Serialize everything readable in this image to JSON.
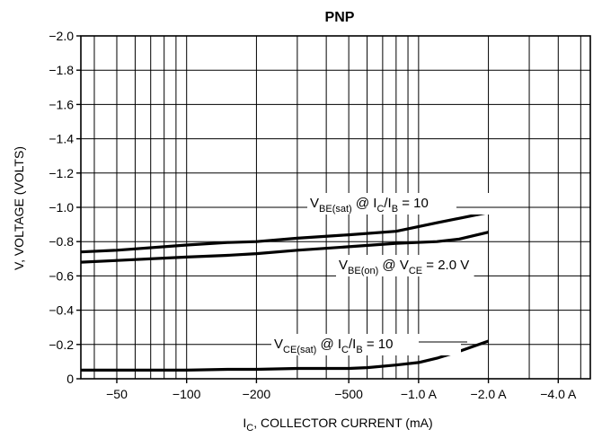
{
  "chart_data": {
    "type": "line",
    "title": "PNP",
    "xlabel": {
      "main": "I",
      "sub": "C",
      "rest": ", COLLECTOR CURRENT (mA)"
    },
    "ylabel": "V, VOLTAGE (VOLTS)",
    "x_scale": "log",
    "x_unit": "mA",
    "xlim": [
      -35,
      -5500
    ],
    "ylim": [
      0,
      -2.0
    ],
    "y_ticks": [
      0,
      -0.2,
      -0.4,
      -0.6,
      -0.8,
      -1.0,
      -1.2,
      -1.4,
      -1.6,
      -1.8,
      -2.0
    ],
    "y_tick_labels": [
      "0",
      "−0.2",
      "−0.4",
      "−0.6",
      "−0.8",
      "−1.0",
      "−1.2",
      "−1.4",
      "−1.6",
      "−1.8",
      "−2.0"
    ],
    "x_ticks": [
      -50,
      -100,
      -200,
      -500,
      -1000,
      -2000,
      -4000
    ],
    "x_tick_labels": [
      "−50",
      "−100",
      "−200",
      "−500",
      "−1.0 A",
      "−2.0 A",
      "−4.0 A"
    ],
    "x_grid_values": [
      -40,
      -50,
      -60,
      -70,
      -80,
      -90,
      -100,
      -200,
      -300,
      -400,
      -500,
      -600,
      -700,
      -800,
      -900,
      -1000,
      -2000,
      -3000,
      -4000,
      -5000
    ],
    "grid": true,
    "series": [
      {
        "name": "VBE(sat) @ IC/IB = 10",
        "x": [
          -35,
          -50,
          -100,
          -150,
          -200,
          -300,
          -500,
          -800,
          -1200,
          -2000
        ],
        "y": [
          -0.74,
          -0.75,
          -0.78,
          -0.795,
          -0.8,
          -0.82,
          -0.84,
          -0.86,
          -0.91,
          -0.97
        ],
        "label": {
          "parts": [
            [
              "V",
              "main"
            ],
            [
              "BE(sat)",
              "sub"
            ],
            [
              " @ I",
              "main"
            ],
            [
              "C",
              "sub"
            ],
            [
              "/I",
              "main"
            ],
            [
              "B",
              "sub"
            ],
            [
              " = 10",
              "main"
            ]
          ]
        }
      },
      {
        "name": "VBE(on) @ VCE = 2.0 V",
        "x": [
          -35,
          -50,
          -100,
          -150,
          -200,
          -300,
          -500,
          -800,
          -1200,
          -1500,
          -2000
        ],
        "y": [
          -0.68,
          -0.69,
          -0.71,
          -0.72,
          -0.73,
          -0.75,
          -0.77,
          -0.79,
          -0.8,
          -0.815,
          -0.855
        ],
        "label": {
          "parts": [
            [
              "V",
              "main"
            ],
            [
              "BE(on)",
              "sub"
            ],
            [
              " @ V",
              "main"
            ],
            [
              "CE",
              "sub"
            ],
            [
              " = 2.0 V",
              "main"
            ]
          ]
        }
      },
      {
        "name": "VCE(sat) @ IC/IB = 10",
        "x": [
          -35,
          -50,
          -100,
          -150,
          -200,
          -300,
          -500,
          -600,
          -800,
          -1000,
          -1200,
          -1500,
          -2000
        ],
        "y": [
          -0.05,
          -0.05,
          -0.05,
          -0.055,
          -0.055,
          -0.06,
          -0.06,
          -0.065,
          -0.08,
          -0.095,
          -0.12,
          -0.16,
          -0.22
        ],
        "label": {
          "parts": [
            [
              "V",
              "main"
            ],
            [
              "CE(sat)",
              "sub"
            ],
            [
              " @ I",
              "main"
            ],
            [
              "C",
              "sub"
            ],
            [
              "/I",
              "main"
            ],
            [
              "B",
              "sub"
            ],
            [
              " = 10",
              "main"
            ]
          ]
        }
      }
    ]
  }
}
